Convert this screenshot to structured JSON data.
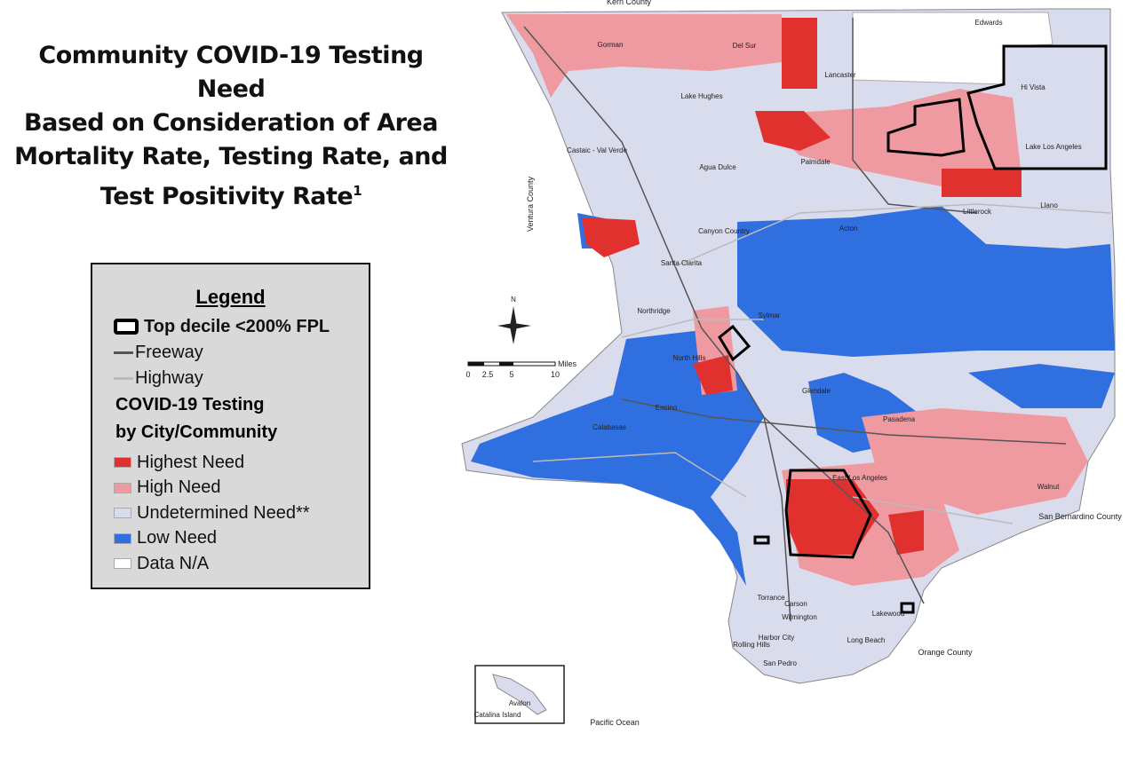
{
  "title": [
    "Community COVID-19 Testing Need",
    "Based on Consideration of Area",
    "Mortality Rate, Testing Rate, and",
    "Test Positivity Rate"
  ],
  "title_footnote": "1",
  "legend": {
    "title": "Legend",
    "lines": [
      {
        "label": "Top decile <200% FPL",
        "color": "#000000"
      },
      {
        "label": "Freeway",
        "color": "#555555"
      },
      {
        "label": "Highway",
        "color": "#bbbbbb"
      }
    ],
    "section_title": [
      "COVID-19 Testing",
      "by City/Community"
    ],
    "categories": [
      {
        "label": "Highest Need",
        "color": "#e0312f"
      },
      {
        "label": "High Need",
        "color": "#ef9aa0"
      },
      {
        "label": "Undetermined Need**",
        "color": "#d9dcec"
      },
      {
        "label": "Low Need",
        "color": "#2f6fdf"
      },
      {
        "label": "Data N/A",
        "color": "#ffffff"
      }
    ]
  },
  "map": {
    "places": [
      "Kern County",
      "Edwards",
      "Gorman",
      "Del Sur",
      "Lancaster",
      "Lake Hughes",
      "Hi Vista",
      "Castaic - Val Verde",
      "Palmdale",
      "Lake Los Angeles",
      "Agua Dulce",
      "Llano",
      "Littlerock",
      "Acton",
      "Canyon Country",
      "Santa Clarita",
      "Ventura County",
      "Northridge",
      "North Hills",
      "Sylmar",
      "Glendale",
      "Encino",
      "Pasadena",
      "Calabasas",
      "East Los Angeles",
      "San Bernardino County",
      "Walnut",
      "Carson",
      "Wilmington",
      "Torrance",
      "Harbor City",
      "Rolling Hills",
      "San Pedro",
      "Long Beach",
      "Lakewood",
      "Orange County",
      "Pacific Ocean",
      "Avalon",
      "Catalina Island"
    ],
    "scale": {
      "unit": "Miles",
      "ticks": [
        "0",
        "2.5",
        "5",
        "10"
      ]
    },
    "compass": "N"
  }
}
